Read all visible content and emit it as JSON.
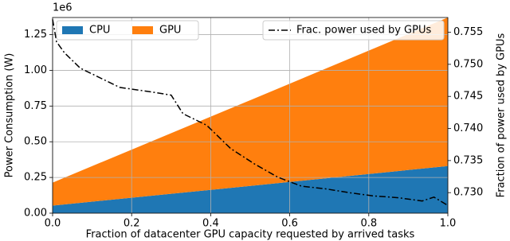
{
  "chart_data": {
    "type": "stacked-area-line",
    "xlabel": "Fraction of datacenter GPU capacity requested by arrived tasks",
    "ylabel": "Power Consumption (W)",
    "y2label": "Fraction of power used by GPUs",
    "y_offset_label": "1e6",
    "x": [
      0,
      0.5,
      1
    ],
    "series": [
      {
        "name": "CPU",
        "color": "#1f77b4",
        "values": [
          53000,
          191000,
          330000
        ]
      },
      {
        "name": "GPU",
        "color": "#ff7f0e",
        "values": [
          161000,
          600000,
          1040000
        ]
      },
      {
        "name": "Frac. power used by GPUs",
        "color": "#000000",
        "axis": "y2",
        "x": [
          0,
          0.01,
          0.03,
          0.07,
          0.11,
          0.17,
          0.25,
          0.3,
          0.33,
          0.39,
          0.45,
          0.51,
          0.57,
          0.63,
          0.69,
          0.75,
          0.81,
          0.875,
          0.935,
          0.965,
          1
        ],
        "values": [
          0.757,
          0.7535,
          0.7518,
          0.7494,
          0.7482,
          0.7464,
          0.7457,
          0.7452,
          0.7423,
          0.7405,
          0.7369,
          0.7345,
          0.7324,
          0.731,
          0.7306,
          0.73,
          0.7295,
          0.7292,
          0.7287,
          0.7293,
          0.728
        ]
      }
    ],
    "xlim": [
      0,
      1
    ],
    "xticks": [
      {
        "value": 0,
        "label": "0.0"
      },
      0.2,
      0.4,
      0.6,
      0.8,
      {
        "value": 1,
        "label": "1.0"
      }
    ],
    "ylim": [
      0,
      1370000
    ],
    "yticks": [
      {
        "value": 0,
        "label": "0.00"
      },
      {
        "value": 250000,
        "label": "0.25"
      },
      {
        "value": 500000,
        "label": "0.50"
      },
      {
        "value": 750000,
        "label": "0.75"
      },
      {
        "value": 1000000,
        "label": "1.00"
      },
      {
        "value": 1250000,
        "label": "1.25"
      }
    ],
    "y2lim": [
      0.7268,
      0.7573
    ],
    "y2ticks": [
      {
        "value": 0.73,
        "label": "0.730"
      },
      0.735,
      {
        "value": 0.74,
        "label": "0.740"
      },
      0.745,
      {
        "value": 0.75,
        "label": "0.750"
      },
      0.755
    ],
    "grid": true
  }
}
